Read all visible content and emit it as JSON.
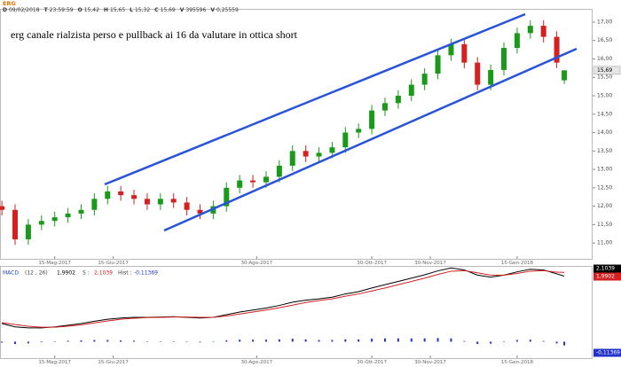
{
  "header": {
    "ticker": "ERG",
    "items": [
      {
        "label": "D",
        "value": "09/02/2018"
      },
      {
        "label": "T",
        "value": "23:59:59"
      },
      {
        "label": "O",
        "value": "15,42"
      },
      {
        "label": "H",
        "value": "15,65"
      },
      {
        "label": "L",
        "value": "15,32"
      },
      {
        "label": "C",
        "value": "15,69"
      },
      {
        "label": "V",
        "value": "395596"
      },
      {
        "label": "V",
        "value": "0,25559"
      }
    ]
  },
  "chart_data": [
    {
      "type": "candlestick",
      "annotation": "erg canale rialzista perso e pullback ai 16 da valutare in ottica short",
      "x": [
        "17/04/2017",
        "24/04/2017",
        "01/05/2017",
        "08/05/2017",
        "15/05/2017",
        "22/05/2017",
        "29/05/2017",
        "05/06/2017",
        "12/06/2017",
        "19/06/2017",
        "26/06/2017",
        "03/07/2017",
        "10/07/2017",
        "17/07/2017",
        "24/07/2017",
        "31/07/2017",
        "07/08/2017",
        "14/08/2017",
        "21/08/2017",
        "28/08/2017",
        "04/09/2017",
        "11/09/2017",
        "18/09/2017",
        "25/09/2017",
        "02/10/2017",
        "09/10/2017",
        "16/10/2017",
        "23/10/2017",
        "30/10/2017",
        "06/11/2017",
        "13/11/2017",
        "20/11/2017",
        "27/11/2017",
        "04/12/2017",
        "11/12/2017",
        "18/12/2017",
        "25/12/2017",
        "01/01/2018",
        "08/01/2018",
        "15/01/2018",
        "22/01/2018",
        "29/01/2018",
        "05/02/2018",
        "09/02/2018"
      ],
      "open": [
        12.0,
        11.9,
        11.1,
        11.5,
        11.6,
        11.7,
        11.8,
        11.9,
        12.2,
        12.4,
        12.3,
        12.2,
        12.05,
        12.2,
        12.1,
        11.9,
        11.8,
        12.0,
        12.5,
        12.7,
        12.65,
        12.8,
        13.1,
        13.5,
        13.35,
        13.45,
        13.6,
        14.0,
        14.1,
        14.6,
        14.8,
        15.0,
        15.3,
        15.6,
        16.1,
        16.4,
        15.9,
        15.3,
        15.7,
        16.3,
        16.7,
        16.9,
        16.6,
        15.42
      ],
      "high": [
        12.15,
        12.05,
        11.65,
        11.75,
        11.85,
        11.95,
        12.05,
        12.35,
        12.55,
        12.55,
        12.45,
        12.35,
        12.35,
        12.35,
        12.25,
        12.05,
        12.15,
        12.65,
        12.85,
        12.85,
        12.95,
        13.25,
        13.65,
        13.65,
        13.6,
        13.75,
        14.15,
        14.25,
        14.75,
        14.95,
        15.15,
        15.45,
        15.75,
        16.25,
        16.55,
        16.55,
        16.05,
        15.85,
        16.45,
        16.85,
        17.05,
        17.05,
        16.75,
        15.65
      ],
      "low": [
        11.75,
        10.95,
        10.95,
        11.35,
        11.45,
        11.55,
        11.65,
        11.75,
        12.05,
        12.15,
        12.05,
        11.9,
        11.9,
        11.95,
        11.75,
        11.65,
        11.65,
        11.85,
        12.35,
        12.5,
        12.5,
        12.65,
        12.95,
        13.2,
        13.2,
        13.3,
        13.45,
        13.85,
        13.95,
        14.45,
        14.65,
        14.85,
        15.15,
        15.45,
        15.95,
        15.75,
        15.15,
        15.15,
        15.55,
        16.15,
        16.55,
        16.45,
        15.75,
        15.32
      ],
      "close": [
        11.9,
        11.1,
        11.5,
        11.6,
        11.7,
        11.8,
        11.9,
        12.2,
        12.4,
        12.3,
        12.2,
        12.05,
        12.2,
        12.1,
        11.9,
        11.8,
        12.0,
        12.5,
        12.7,
        12.65,
        12.8,
        13.1,
        13.5,
        13.35,
        13.45,
        13.6,
        14.0,
        14.1,
        14.6,
        14.8,
        15.0,
        15.3,
        15.6,
        16.1,
        16.4,
        15.9,
        15.3,
        15.7,
        16.3,
        16.7,
        16.9,
        16.6,
        15.9,
        15.69
      ],
      "up_color": "#1a9a1a",
      "down_color": "#d42020",
      "xlim": [
        "16/04/2017",
        "24/02/2018"
      ],
      "xticks": [
        {
          "value": "15/05/2017",
          "label": "15-Mag-2017"
        },
        {
          "value": "15/06/2017",
          "label": "15-Giu-2017"
        },
        {
          "value": "30/08/2017",
          "label": "30-Ago-2017"
        },
        {
          "value": "30/10/2017",
          "label": "30-Ott-2017"
        },
        {
          "value": "30/11/2017",
          "label": "30-Nov-2017"
        },
        {
          "value": "15/01/2018",
          "label": "15-Gen-2018"
        }
      ],
      "ylim": [
        10.57,
        17.36
      ],
      "yticks": [
        {
          "value": 11,
          "label": "11,00"
        },
        {
          "value": 11.5,
          "label": "11,50"
        },
        {
          "value": 12,
          "label": "12,00"
        },
        {
          "value": 12.5,
          "label": "12,50"
        },
        {
          "value": 13,
          "label": "13,00"
        },
        {
          "value": 13.5,
          "label": "13,50"
        },
        {
          "value": 14,
          "label": "14,00"
        },
        {
          "value": 14.5,
          "label": "14,50"
        },
        {
          "value": 15,
          "label": "15,00"
        },
        {
          "value": 15.5,
          "label": "15,50"
        },
        {
          "value": 16,
          "label": "16,00"
        },
        {
          "value": 16.5,
          "label": "16,50"
        },
        {
          "value": 17,
          "label": "17,00"
        }
      ],
      "grid": false
    },
    {
      "type": "macd",
      "title": "MACD",
      "params": "(12 , 26)",
      "x": [
        "17/04/2017",
        "24/04/2017",
        "01/05/2017",
        "08/05/2017",
        "15/05/2017",
        "22/05/2017",
        "29/05/2017",
        "05/06/2017",
        "12/06/2017",
        "19/06/2017",
        "26/06/2017",
        "03/07/2017",
        "10/07/2017",
        "17/07/2017",
        "24/07/2017",
        "31/07/2017",
        "07/08/2017",
        "14/08/2017",
        "21/08/2017",
        "28/08/2017",
        "04/09/2017",
        "11/09/2017",
        "18/09/2017",
        "25/09/2017",
        "02/10/2017",
        "09/10/2017",
        "16/10/2017",
        "23/10/2017",
        "30/10/2017",
        "06/11/2017",
        "13/11/2017",
        "20/11/2017",
        "27/11/2017",
        "04/12/2017",
        "11/12/2017",
        "18/12/2017",
        "25/12/2017",
        "01/01/2018",
        "08/01/2018",
        "15/01/2018",
        "22/01/2018",
        "29/01/2018",
        "05/02/2018",
        "09/02/2018"
      ],
      "series": [
        {
          "name": "MACD",
          "color": "#000000",
          "value_label": "1,9902",
          "values": [
            0.55,
            0.45,
            0.42,
            0.42,
            0.45,
            0.5,
            0.55,
            0.62,
            0.68,
            0.72,
            0.74,
            0.74,
            0.75,
            0.76,
            0.74,
            0.72,
            0.74,
            0.82,
            0.9,
            0.96,
            1.02,
            1.1,
            1.2,
            1.26,
            1.3,
            1.35,
            1.45,
            1.52,
            1.63,
            1.73,
            1.83,
            1.93,
            2.03,
            2.15,
            2.24,
            2.18,
            2.02,
            1.96,
            2.02,
            2.12,
            2.2,
            2.18,
            2.06,
            1.9902
          ]
        },
        {
          "name": "S :",
          "color": "#d42020",
          "value_label": "2,1039",
          "values": [
            0.58,
            0.52,
            0.47,
            0.44,
            0.44,
            0.47,
            0.51,
            0.57,
            0.63,
            0.68,
            0.71,
            0.73,
            0.74,
            0.75,
            0.75,
            0.74,
            0.74,
            0.78,
            0.84,
            0.9,
            0.96,
            1.03,
            1.11,
            1.19,
            1.25,
            1.3,
            1.38,
            1.45,
            1.54,
            1.63,
            1.73,
            1.83,
            1.93,
            2.04,
            2.14,
            2.16,
            2.09,
            2.02,
            2.02,
            2.07,
            2.14,
            2.16,
            2.11,
            2.1039
          ]
        },
        {
          "name": "Hist :",
          "color": "#2233cc",
          "value_label": "-0,11369",
          "style": "bars",
          "values": [
            -0.03,
            -0.07,
            -0.05,
            -0.02,
            0.01,
            0.03,
            0.04,
            0.05,
            0.05,
            0.04,
            0.03,
            0.01,
            0.01,
            0.01,
            -0.01,
            -0.02,
            0,
            0.04,
            0.06,
            0.06,
            0.06,
            0.07,
            0.09,
            0.07,
            0.05,
            0.05,
            0.07,
            0.07,
            0.09,
            0.1,
            0.1,
            0.1,
            0.1,
            0.11,
            0.1,
            0.02,
            -0.07,
            -0.06,
            0,
            0.05,
            0.06,
            0.02,
            -0.05,
            -0.11369
          ]
        }
      ],
      "xlim": [
        "16/04/2017",
        "24/02/2018"
      ],
      "xticks": [
        {
          "value": "15/05/2017",
          "label": "15-Mag-2017"
        },
        {
          "value": "15/06/2017",
          "label": "15-Giu-2017"
        },
        {
          "value": "30/08/2017",
          "label": "30-Ago-2017"
        },
        {
          "value": "30/10/2017",
          "label": "30-Ott-2017"
        },
        {
          "value": "30/11/2017",
          "label": "30-Nov-2017"
        },
        {
          "value": "15/01/2018",
          "label": "15-Gen-2018"
        }
      ],
      "ylim": [
        -0.5,
        2.3
      ]
    }
  ]
}
